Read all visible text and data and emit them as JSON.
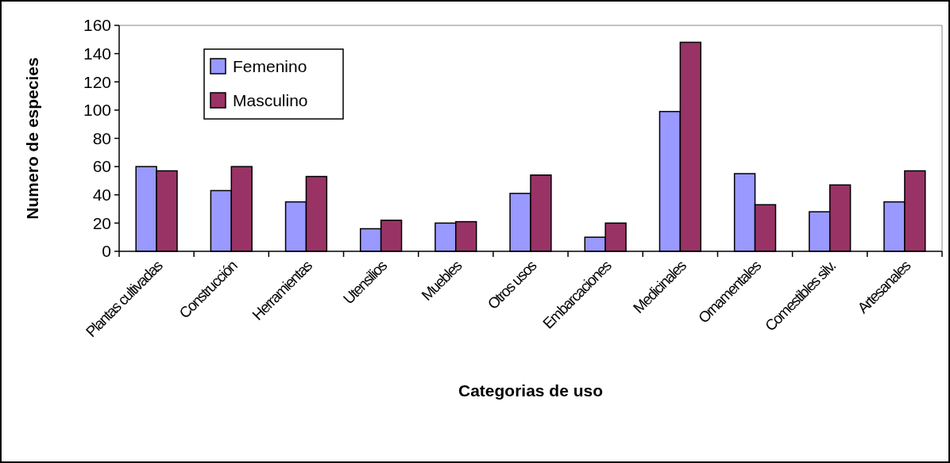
{
  "chart_data": {
    "type": "bar",
    "xlabel": "Categorias de uso",
    "ylabel": "Numero de especies",
    "categories": [
      "Plantas cultivadas",
      "Construcción",
      "Herramientas",
      "Utensilios",
      "Muebles",
      "Otros usos",
      "Embarcaciones",
      "Medicinales",
      "Ornamentales",
      "Comestibles silv.",
      "Artesanales"
    ],
    "series": [
      {
        "name": "Femenino",
        "color": "#9999ff",
        "values": [
          60,
          43,
          35,
          16,
          20,
          41,
          10,
          99,
          55,
          28,
          35
        ]
      },
      {
        "name": "Masculino",
        "color": "#993366",
        "values": [
          57,
          60,
          53,
          22,
          21,
          54,
          20,
          148,
          33,
          47,
          57
        ]
      }
    ],
    "ylim": [
      0,
      160
    ],
    "yticks": [
      0,
      20,
      40,
      60,
      80,
      100,
      120,
      140,
      160
    ],
    "legend": "top left",
    "grid": false
  }
}
